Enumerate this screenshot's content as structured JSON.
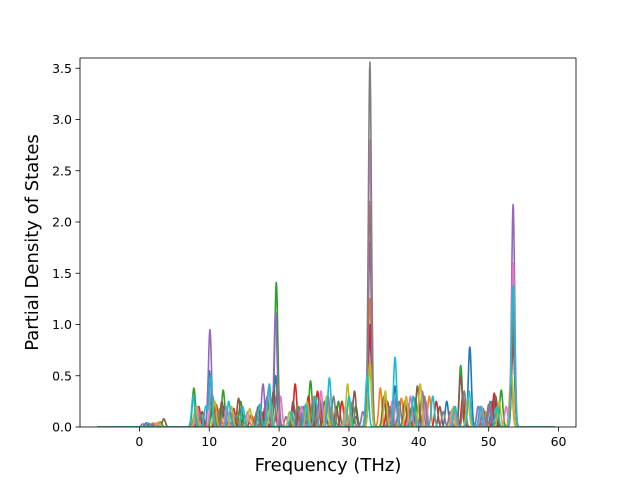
{
  "chart_data": {
    "type": "line",
    "title": "",
    "xlabel": "Frequency (THz)",
    "ylabel": "Partial Density of States",
    "xlim": [
      -8.5,
      62.5
    ],
    "ylim": [
      0,
      3.6
    ],
    "xticks": [
      0,
      10,
      20,
      30,
      40,
      50,
      60
    ],
    "yticks": [
      0.0,
      0.5,
      1.0,
      1.5,
      2.0,
      2.5,
      3.0,
      3.5
    ],
    "grid": false,
    "legend": "none",
    "x_range": [
      -6,
      59.5
    ],
    "peak_width": 0.22,
    "series": [
      {
        "color": "#1f77b4",
        "peaks": [
          [
            1.5,
            0.03
          ],
          [
            8.2,
            0.18
          ],
          [
            10.0,
            0.55
          ],
          [
            12.1,
            0.2
          ],
          [
            15.0,
            0.12
          ],
          [
            18.3,
            0.3
          ],
          [
            19.5,
            0.5
          ],
          [
            23.0,
            0.15
          ],
          [
            26.5,
            0.25
          ],
          [
            31.0,
            0.1
          ],
          [
            33.0,
            0.9
          ],
          [
            36.6,
            0.4
          ],
          [
            39.0,
            0.2
          ],
          [
            44.0,
            0.25
          ],
          [
            47.3,
            0.78
          ],
          [
            50.5,
            0.25
          ],
          [
            53.5,
            1.3
          ]
        ]
      },
      {
        "color": "#ff7f0e",
        "peaks": [
          [
            2.0,
            0.04
          ],
          [
            7.9,
            0.12
          ],
          [
            11.5,
            0.18
          ],
          [
            14.0,
            0.15
          ],
          [
            16.5,
            0.1
          ],
          [
            19.3,
            0.3
          ],
          [
            22.5,
            0.12
          ],
          [
            25.0,
            0.3
          ],
          [
            27.5,
            0.2
          ],
          [
            30.2,
            0.15
          ],
          [
            33.0,
            1.25
          ],
          [
            34.5,
            0.38
          ],
          [
            37.5,
            0.28
          ],
          [
            40.0,
            0.2
          ],
          [
            41.5,
            0.3
          ],
          [
            45.5,
            0.1
          ],
          [
            49.5,
            0.15
          ],
          [
            53.2,
            0.5
          ]
        ]
      },
      {
        "color": "#2ca02c",
        "peaks": [
          [
            3.0,
            0.05
          ],
          [
            7.8,
            0.38
          ],
          [
            10.5,
            0.3
          ],
          [
            12.0,
            0.36
          ],
          [
            14.5,
            0.25
          ],
          [
            17.5,
            0.15
          ],
          [
            19.6,
            1.41
          ],
          [
            22.8,
            0.2
          ],
          [
            24.5,
            0.45
          ],
          [
            28.5,
            0.25
          ],
          [
            31.0,
            0.2
          ],
          [
            33.0,
            0.6
          ],
          [
            36.0,
            0.2
          ],
          [
            39.5,
            0.28
          ],
          [
            46.0,
            0.6
          ],
          [
            49.2,
            0.18
          ],
          [
            51.8,
            0.36
          ],
          [
            53.5,
            0.9
          ]
        ]
      },
      {
        "color": "#d62728",
        "peaks": [
          [
            1.0,
            0.04
          ],
          [
            8.5,
            0.2
          ],
          [
            11.0,
            0.22
          ],
          [
            13.5,
            0.18
          ],
          [
            16.0,
            0.12
          ],
          [
            18.0,
            0.2
          ],
          [
            22.3,
            0.42
          ],
          [
            24.2,
            0.3
          ],
          [
            25.5,
            0.35
          ],
          [
            29.0,
            0.25
          ],
          [
            33.0,
            1.0
          ],
          [
            35.5,
            0.25
          ],
          [
            38.5,
            0.22
          ],
          [
            42.5,
            0.25
          ],
          [
            46.3,
            0.3
          ],
          [
            50.8,
            0.33
          ],
          [
            53.5,
            0.8
          ]
        ]
      },
      {
        "color": "#9467bd",
        "peaks": [
          [
            0.5,
            0.03
          ],
          [
            8.0,
            0.15
          ],
          [
            10.1,
            0.95
          ],
          [
            13.0,
            0.15
          ],
          [
            17.7,
            0.42
          ],
          [
            19.5,
            1.12
          ],
          [
            21.0,
            0.1
          ],
          [
            23.5,
            0.2
          ],
          [
            27.0,
            0.3
          ],
          [
            32.0,
            0.15
          ],
          [
            33.0,
            1.8
          ],
          [
            36.8,
            0.3
          ],
          [
            40.5,
            0.35
          ],
          [
            44.5,
            0.15
          ],
          [
            48.5,
            0.2
          ],
          [
            50.0,
            0.22
          ],
          [
            53.5,
            2.17
          ]
        ]
      },
      {
        "color": "#8c564b",
        "peaks": [
          [
            3.5,
            0.08
          ],
          [
            9.0,
            0.15
          ],
          [
            11.8,
            0.25
          ],
          [
            14.2,
            0.28
          ],
          [
            17.0,
            0.2
          ],
          [
            19.2,
            0.35
          ],
          [
            22.0,
            0.25
          ],
          [
            25.8,
            0.28
          ],
          [
            28.2,
            0.2
          ],
          [
            30.8,
            0.35
          ],
          [
            33.0,
            2.2
          ],
          [
            35.0,
            0.3
          ],
          [
            38.0,
            0.25
          ],
          [
            39.8,
            0.4
          ],
          [
            43.0,
            0.2
          ],
          [
            46.0,
            0.5
          ],
          [
            51.0,
            0.3
          ],
          [
            53.5,
            1.0
          ]
        ]
      },
      {
        "color": "#e377c2",
        "peaks": [
          [
            2.5,
            0.04
          ],
          [
            8.3,
            0.2
          ],
          [
            10.3,
            0.4
          ],
          [
            12.5,
            0.2
          ],
          [
            15.5,
            0.15
          ],
          [
            18.5,
            0.38
          ],
          [
            20.2,
            0.3
          ],
          [
            23.2,
            0.2
          ],
          [
            26.0,
            0.35
          ],
          [
            29.5,
            0.2
          ],
          [
            33.0,
            2.8
          ],
          [
            36.2,
            0.25
          ],
          [
            38.8,
            0.3
          ],
          [
            41.0,
            0.25
          ],
          [
            45.0,
            0.2
          ],
          [
            49.0,
            0.2
          ],
          [
            52.5,
            0.2
          ],
          [
            53.5,
            1.6
          ]
        ]
      },
      {
        "color": "#7f7f7f",
        "peaks": [
          [
            1.8,
            0.03
          ],
          [
            8.8,
            0.12
          ],
          [
            11.2,
            0.15
          ],
          [
            13.8,
            0.12
          ],
          [
            16.8,
            0.15
          ],
          [
            19.8,
            0.45
          ],
          [
            22.6,
            0.2
          ],
          [
            24.8,
            0.25
          ],
          [
            27.8,
            0.3
          ],
          [
            30.5,
            0.25
          ],
          [
            33.0,
            3.56
          ],
          [
            35.8,
            0.2
          ],
          [
            37.2,
            0.25
          ],
          [
            40.8,
            0.3
          ],
          [
            43.5,
            0.15
          ],
          [
            46.5,
            0.35
          ],
          [
            50.2,
            0.25
          ],
          [
            53.5,
            1.2
          ]
        ]
      },
      {
        "color": "#bcbd22",
        "peaks": [
          [
            2.8,
            0.05
          ],
          [
            8.1,
            0.2
          ],
          [
            10.8,
            0.25
          ],
          [
            13.2,
            0.2
          ],
          [
            15.8,
            0.18
          ],
          [
            18.8,
            0.25
          ],
          [
            21.5,
            0.15
          ],
          [
            24.0,
            0.25
          ],
          [
            26.8,
            0.3
          ],
          [
            29.8,
            0.42
          ],
          [
            33.0,
            0.63
          ],
          [
            35.2,
            0.35
          ],
          [
            38.2,
            0.3
          ],
          [
            40.2,
            0.42
          ],
          [
            44.8,
            0.18
          ],
          [
            47.0,
            0.28
          ],
          [
            51.5,
            0.25
          ],
          [
            53.3,
            0.5
          ]
        ]
      },
      {
        "color": "#17becf",
        "peaks": [
          [
            1.2,
            0.04
          ],
          [
            7.7,
            0.3
          ],
          [
            9.5,
            0.2
          ],
          [
            10.2,
            0.5
          ],
          [
            12.8,
            0.25
          ],
          [
            14.8,
            0.2
          ],
          [
            17.2,
            0.22
          ],
          [
            18.6,
            0.42
          ],
          [
            21.8,
            0.15
          ],
          [
            23.8,
            0.22
          ],
          [
            25.2,
            0.3
          ],
          [
            27.2,
            0.48
          ],
          [
            30.0,
            0.3
          ],
          [
            32.6,
            0.5
          ],
          [
            36.6,
            0.68
          ],
          [
            39.2,
            0.3
          ],
          [
            42.0,
            0.3
          ],
          [
            45.2,
            0.2
          ],
          [
            47.2,
            0.35
          ],
          [
            48.8,
            0.2
          ],
          [
            51.2,
            0.2
          ],
          [
            53.5,
            1.38
          ]
        ]
      }
    ]
  }
}
